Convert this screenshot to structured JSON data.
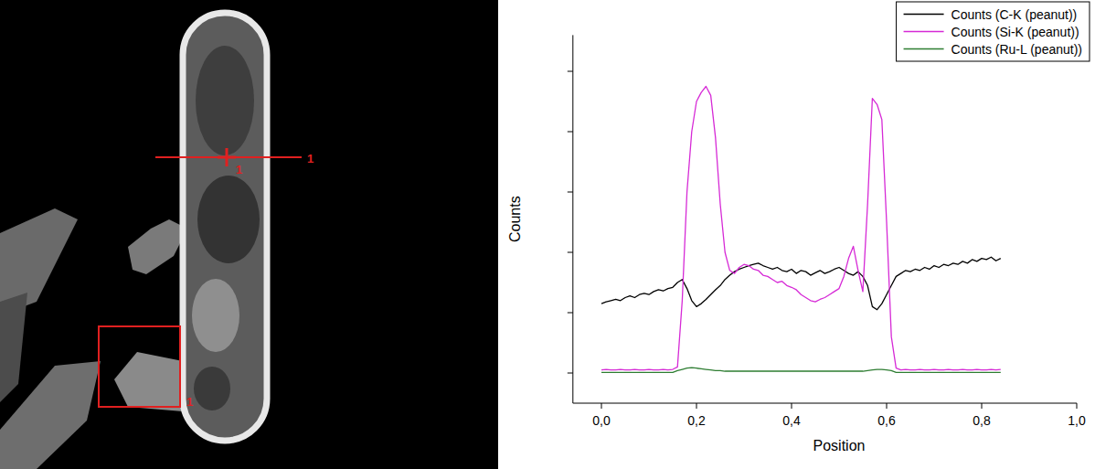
{
  "image": {
    "labels": [
      "1",
      "1",
      "1"
    ]
  },
  "chart_data": {
    "type": "line",
    "x_label": "Position",
    "y_label": "Counts",
    "xlim": [
      -0.06,
      1.0
    ],
    "xticks": [
      {
        "value": 0,
        "label": "0,0"
      },
      {
        "value": 0.2,
        "label": "0,2"
      },
      {
        "value": 0.4,
        "label": "0,4"
      },
      {
        "value": 0.6,
        "label": "0,6"
      },
      {
        "value": 0.8,
        "label": "0,8"
      },
      {
        "value": 1.0,
        "label": "1,0"
      }
    ],
    "ylim": [
      -0.5,
      5.6
    ],
    "yticks": [
      0,
      1,
      2,
      3,
      4,
      5
    ],
    "tick_labels": "x",
    "legend": "top-right",
    "grid": false,
    "x": [
      0,
      0.01,
      0.02,
      0.03,
      0.04,
      0.05,
      0.06,
      0.07,
      0.08,
      0.09,
      0.1,
      0.11,
      0.12,
      0.13,
      0.14,
      0.15,
      0.16,
      0.17,
      0.18,
      0.19,
      0.2,
      0.21,
      0.22,
      0.23,
      0.24,
      0.25,
      0.26,
      0.27,
      0.28,
      0.29,
      0.3,
      0.31,
      0.32,
      0.33,
      0.34,
      0.35,
      0.36,
      0.37,
      0.38,
      0.39,
      0.4,
      0.41,
      0.42,
      0.43,
      0.44,
      0.45,
      0.46,
      0.47,
      0.48,
      0.49,
      0.5,
      0.51,
      0.52,
      0.53,
      0.54,
      0.55,
      0.56,
      0.57,
      0.58,
      0.59,
      0.6,
      0.61,
      0.62,
      0.63,
      0.64,
      0.65,
      0.66,
      0.67,
      0.68,
      0.69,
      0.7,
      0.71,
      0.72,
      0.73,
      0.74,
      0.75,
      0.76,
      0.77,
      0.78,
      0.79,
      0.8,
      0.81,
      0.82,
      0.83,
      0.84
    ],
    "series": [
      {
        "name": "Counts (C-K (peanut))",
        "color": "#000000",
        "values": [
          1.15,
          1.18,
          1.2,
          1.22,
          1.2,
          1.25,
          1.28,
          1.25,
          1.3,
          1.32,
          1.3,
          1.35,
          1.38,
          1.36,
          1.4,
          1.42,
          1.5,
          1.55,
          1.4,
          1.2,
          1.1,
          1.15,
          1.22,
          1.3,
          1.38,
          1.45,
          1.55,
          1.62,
          1.68,
          1.72,
          1.75,
          1.78,
          1.8,
          1.82,
          1.78,
          1.75,
          1.72,
          1.75,
          1.7,
          1.68,
          1.72,
          1.65,
          1.7,
          1.68,
          1.62,
          1.66,
          1.7,
          1.65,
          1.68,
          1.72,
          1.75,
          1.7,
          1.65,
          1.62,
          1.68,
          1.6,
          1.45,
          1.1,
          1.05,
          1.15,
          1.3,
          1.45,
          1.6,
          1.65,
          1.7,
          1.68,
          1.72,
          1.7,
          1.75,
          1.72,
          1.78,
          1.75,
          1.8,
          1.78,
          1.82,
          1.8,
          1.85,
          1.82,
          1.88,
          1.85,
          1.9,
          1.88,
          1.92,
          1.86,
          1.9
        ]
      },
      {
        "name": "Counts (Si-K (peanut))",
        "color": "#d62ad6",
        "values": [
          0.05,
          0.06,
          0.05,
          0.05,
          0.06,
          0.05,
          0.05,
          0.06,
          0.05,
          0.05,
          0.06,
          0.05,
          0.05,
          0.06,
          0.05,
          0.06,
          0.1,
          1.2,
          3.0,
          4.0,
          4.5,
          4.65,
          4.75,
          4.6,
          3.9,
          2.8,
          2.0,
          1.7,
          1.65,
          1.75,
          1.8,
          1.78,
          1.72,
          1.7,
          1.62,
          1.6,
          1.55,
          1.5,
          1.52,
          1.45,
          1.42,
          1.38,
          1.3,
          1.25,
          1.2,
          1.18,
          1.22,
          1.25,
          1.3,
          1.35,
          1.4,
          1.6,
          1.9,
          2.1,
          1.7,
          1.35,
          2.8,
          4.55,
          4.45,
          4.2,
          2.5,
          0.6,
          0.08,
          0.05,
          0.06,
          0.05,
          0.05,
          0.06,
          0.05,
          0.05,
          0.06,
          0.05,
          0.05,
          0.06,
          0.05,
          0.05,
          0.06,
          0.05,
          0.05,
          0.06,
          0.05,
          0.05,
          0.06,
          0.05,
          0.06
        ]
      },
      {
        "name": "Counts (Ru-L (peanut))",
        "color": "#2e7d32",
        "values": [
          0.01,
          0.01,
          0.01,
          0.01,
          0.01,
          0.01,
          0.01,
          0.01,
          0.01,
          0.01,
          0.01,
          0.01,
          0.01,
          0.01,
          0.01,
          0.01,
          0.04,
          0.06,
          0.08,
          0.09,
          0.08,
          0.07,
          0.06,
          0.05,
          0.04,
          0.04,
          0.03,
          0.03,
          0.03,
          0.03,
          0.03,
          0.03,
          0.03,
          0.03,
          0.03,
          0.03,
          0.03,
          0.03,
          0.03,
          0.03,
          0.03,
          0.03,
          0.03,
          0.03,
          0.03,
          0.03,
          0.03,
          0.03,
          0.03,
          0.03,
          0.03,
          0.03,
          0.03,
          0.03,
          0.03,
          0.03,
          0.04,
          0.05,
          0.06,
          0.06,
          0.05,
          0.04,
          0.01,
          0.01,
          0.01,
          0.01,
          0.01,
          0.01,
          0.01,
          0.01,
          0.01,
          0.01,
          0.01,
          0.01,
          0.01,
          0.01,
          0.01,
          0.01,
          0.01,
          0.01,
          0.01,
          0.01,
          0.01,
          0.01,
          0.01
        ]
      }
    ]
  }
}
